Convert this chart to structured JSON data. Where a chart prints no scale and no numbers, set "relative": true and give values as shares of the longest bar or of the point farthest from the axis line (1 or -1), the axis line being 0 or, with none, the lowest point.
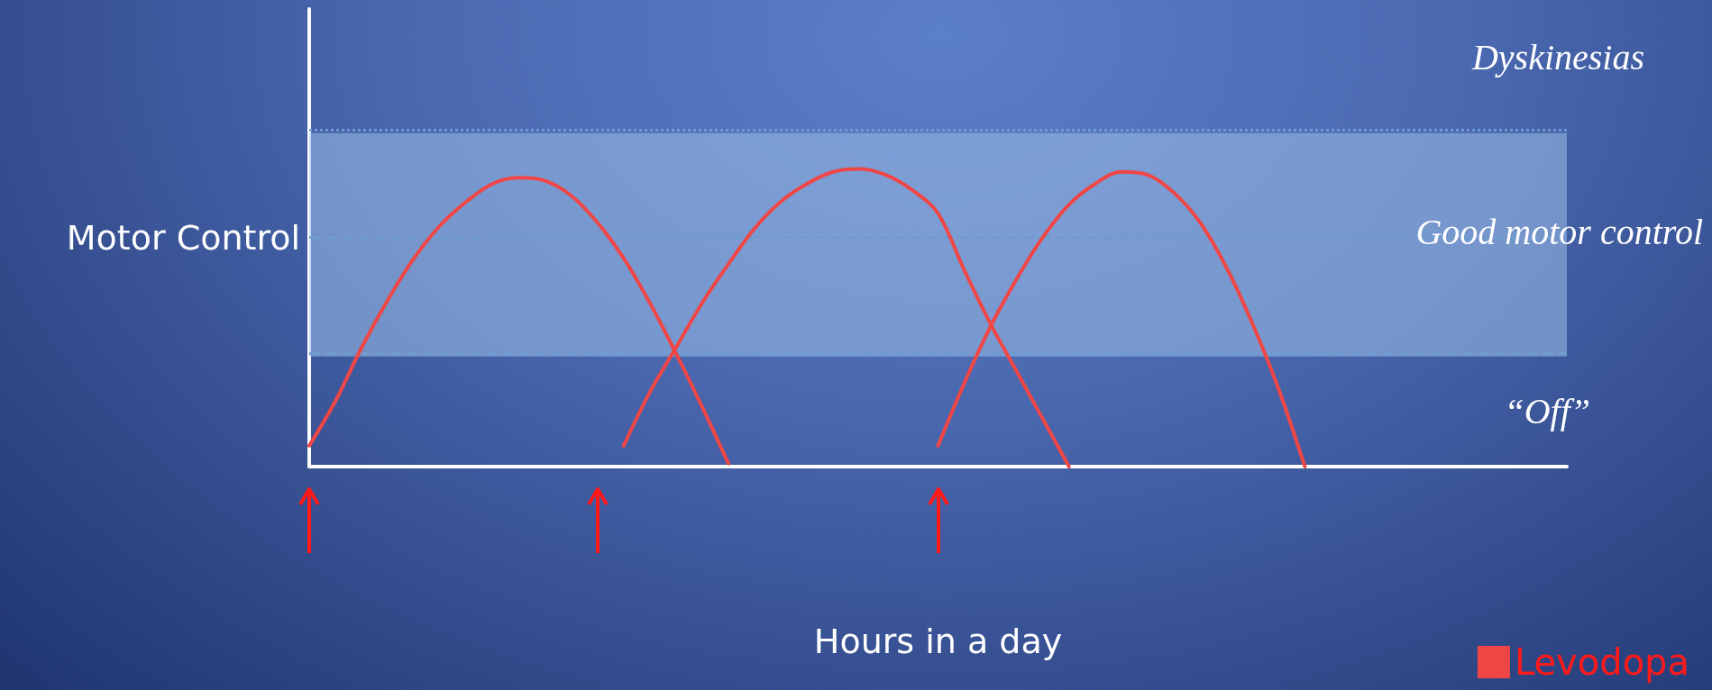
{
  "chart_data": {
    "type": "line",
    "relative": true,
    "xlabel": "Hours in a day",
    "ylabel": "Motor Control",
    "categories": [
      null,
      null,
      null,
      null,
      null,
      null,
      null,
      null,
      null,
      null,
      null,
      null,
      null,
      null,
      null,
      null,
      null,
      null,
      null,
      null,
      null,
      null,
      null,
      null,
      null,
      null,
      null,
      null,
      null,
      null,
      null,
      null,
      null,
      null,
      null,
      null,
      null,
      null,
      null,
      null,
      null,
      null,
      null,
      null,
      null,
      null,
      null,
      null,
      null
    ],
    "series": [
      {
        "name": "Levodopa",
        "color": "#f04646",
        "values": [
          0.07,
          0.22,
          0.4,
          0.56,
          0.7,
          0.81,
          0.89,
          0.95,
          0.97,
          0.96,
          0.91,
          0.82,
          0.7,
          0.55,
          0.38,
          0.2,
          0.01,
          null,
          null,
          null,
          null,
          null,
          null,
          null,
          null,
          null,
          null,
          null,
          null,
          null,
          null,
          null,
          null,
          null,
          null,
          null,
          null,
          null,
          null,
          null,
          null,
          null,
          null,
          null,
          null,
          null,
          null,
          null,
          null
        ]
      },
      {
        "color": "#f04646",
        "values": [
          null,
          null,
          null,
          null,
          null,
          null,
          null,
          null,
          null,
          null,
          null,
          null,
          0.07,
          0.25,
          0.4,
          0.55,
          0.68,
          0.8,
          0.89,
          0.95,
          0.99,
          1.0,
          0.98,
          0.93,
          0.85,
          0.66,
          0.48,
          0.32,
          0.16,
          0.0,
          null,
          null,
          null,
          null,
          null,
          null,
          null,
          null,
          null,
          null,
          null,
          null,
          null,
          null,
          null,
          null,
          null,
          null,
          null
        ]
      },
      {
        "color": "#f04646",
        "values": [
          null,
          null,
          null,
          null,
          null,
          null,
          null,
          null,
          null,
          null,
          null,
          null,
          null,
          null,
          null,
          null,
          null,
          null,
          null,
          null,
          null,
          null,
          null,
          null,
          0.07,
          0.28,
          0.47,
          0.63,
          0.77,
          0.88,
          0.95,
          0.99,
          0.98,
          0.92,
          0.82,
          0.67,
          0.48,
          0.26,
          0.0,
          null,
          null,
          null,
          null,
          null,
          null,
          null,
          null,
          null,
          null
        ]
      }
    ],
    "bands": [
      {
        "axis": "y",
        "from": 0.37,
        "to": 1.12,
        "color": "#9cc0e8"
      }
    ],
    "ref_lines": [
      {
        "axis": "y",
        "value": 1.13,
        "line_style": "dotted",
        "color": "#6f9bd0"
      },
      {
        "axis": "y",
        "value": 0.77,
        "line_style": "dashed",
        "color": "#6f9bd0"
      },
      {
        "axis": "y",
        "value": 0.38,
        "line_style": "dashed",
        "color": "#6f9bd0"
      }
    ],
    "annotations": [
      "Dyskinesias",
      "Good motor control",
      "“Off”"
    ],
    "legend": "bottom right",
    "grid": false,
    "marker": "none",
    "line_style": "solid"
  }
}
